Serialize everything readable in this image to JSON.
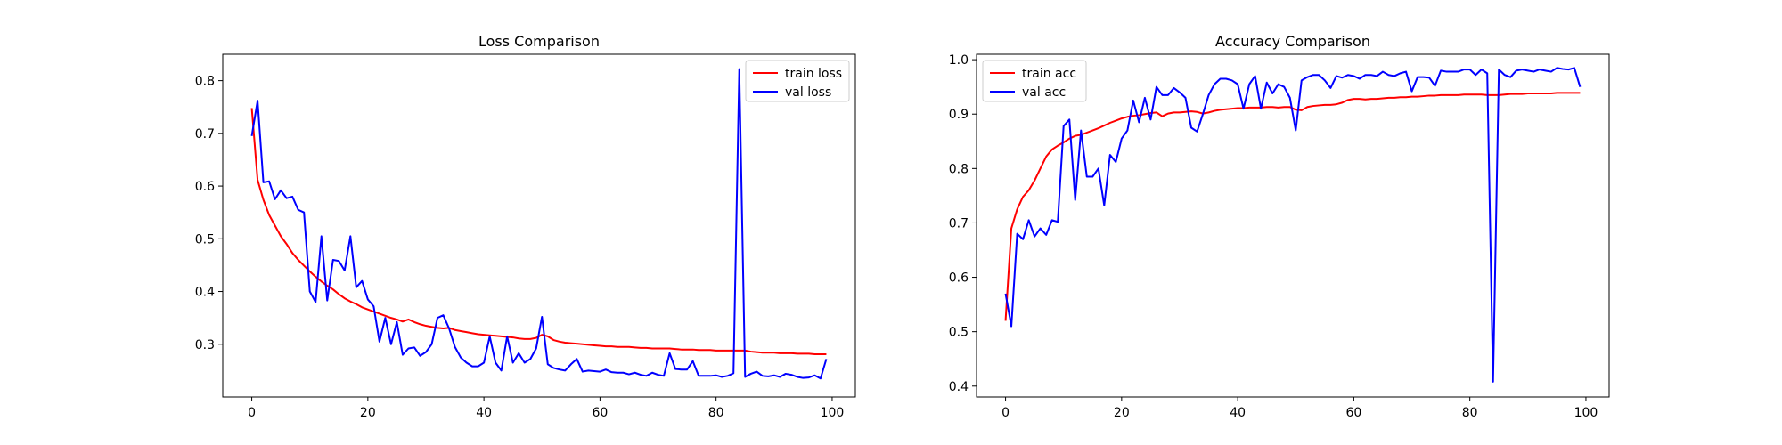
{
  "chart_data": [
    {
      "type": "line",
      "title": "Loss Comparison",
      "xlabel": "",
      "ylabel": "",
      "xlim": [
        -5,
        104
      ],
      "ylim": [
        0.2,
        0.85
      ],
      "xticks": [
        0,
        20,
        40,
        60,
        80,
        100
      ],
      "yticks": [
        0.3,
        0.4,
        0.5,
        0.6,
        0.7,
        0.8
      ],
      "grid": false,
      "legend": "top-right",
      "series": [
        {
          "name": "train loss",
          "color": "#ff0000",
          "x": [
            0,
            1,
            2,
            3,
            4,
            5,
            6,
            7,
            8,
            9,
            10,
            11,
            12,
            13,
            14,
            15,
            16,
            17,
            18,
            19,
            20,
            21,
            22,
            23,
            24,
            25,
            26,
            27,
            28,
            29,
            30,
            31,
            32,
            33,
            34,
            35,
            36,
            37,
            38,
            39,
            40,
            41,
            42,
            43,
            44,
            45,
            46,
            47,
            48,
            49,
            50,
            51,
            52,
            53,
            54,
            55,
            56,
            57,
            58,
            59,
            60,
            61,
            62,
            63,
            64,
            65,
            66,
            67,
            68,
            69,
            70,
            71,
            72,
            73,
            74,
            75,
            76,
            77,
            78,
            79,
            80,
            81,
            82,
            83,
            84,
            85,
            86,
            87,
            88,
            89,
            90,
            91,
            92,
            93,
            94,
            95,
            96,
            97,
            98,
            99
          ],
          "values": [
            0.748,
            0.612,
            0.574,
            0.545,
            0.525,
            0.505,
            0.49,
            0.473,
            0.46,
            0.449,
            0.438,
            0.428,
            0.419,
            0.411,
            0.404,
            0.395,
            0.387,
            0.381,
            0.376,
            0.37,
            0.366,
            0.362,
            0.358,
            0.354,
            0.35,
            0.347,
            0.343,
            0.347,
            0.342,
            0.338,
            0.335,
            0.333,
            0.331,
            0.33,
            0.331,
            0.327,
            0.325,
            0.323,
            0.321,
            0.319,
            0.318,
            0.317,
            0.316,
            0.315,
            0.314,
            0.313,
            0.311,
            0.31,
            0.31,
            0.312,
            0.318,
            0.315,
            0.308,
            0.305,
            0.303,
            0.302,
            0.301,
            0.3,
            0.299,
            0.298,
            0.297,
            0.296,
            0.296,
            0.295,
            0.295,
            0.295,
            0.294,
            0.293,
            0.293,
            0.292,
            0.292,
            0.292,
            0.292,
            0.291,
            0.29,
            0.29,
            0.29,
            0.289,
            0.289,
            0.289,
            0.288,
            0.288,
            0.288,
            0.288,
            0.288,
            0.288,
            0.286,
            0.285,
            0.284,
            0.284,
            0.284,
            0.283,
            0.283,
            0.283,
            0.282,
            0.282,
            0.282,
            0.281,
            0.281,
            0.281
          ]
        },
        {
          "name": "val loss",
          "color": "#0000ff",
          "x": [
            0,
            1,
            2,
            3,
            4,
            5,
            6,
            7,
            8,
            9,
            10,
            11,
            12,
            13,
            14,
            15,
            16,
            17,
            18,
            19,
            20,
            21,
            22,
            23,
            24,
            25,
            26,
            27,
            28,
            29,
            30,
            31,
            32,
            33,
            34,
            35,
            36,
            37,
            38,
            39,
            40,
            41,
            42,
            43,
            44,
            45,
            46,
            47,
            48,
            49,
            50,
            51,
            52,
            53,
            54,
            55,
            56,
            57,
            58,
            59,
            60,
            61,
            62,
            63,
            64,
            65,
            66,
            67,
            68,
            69,
            70,
            71,
            72,
            73,
            74,
            75,
            76,
            77,
            78,
            79,
            80,
            81,
            82,
            83,
            84,
            85,
            86,
            87,
            88,
            89,
            90,
            91,
            92,
            93,
            94,
            95,
            96,
            97,
            98,
            99
          ],
          "values": [
            0.695,
            0.762,
            0.607,
            0.609,
            0.575,
            0.592,
            0.577,
            0.58,
            0.555,
            0.55,
            0.4,
            0.38,
            0.505,
            0.383,
            0.46,
            0.458,
            0.44,
            0.505,
            0.408,
            0.42,
            0.385,
            0.372,
            0.305,
            0.35,
            0.3,
            0.342,
            0.28,
            0.292,
            0.294,
            0.278,
            0.285,
            0.3,
            0.35,
            0.355,
            0.33,
            0.295,
            0.275,
            0.265,
            0.258,
            0.258,
            0.265,
            0.315,
            0.265,
            0.25,
            0.315,
            0.265,
            0.283,
            0.265,
            0.272,
            0.292,
            0.352,
            0.262,
            0.255,
            0.252,
            0.25,
            0.262,
            0.272,
            0.248,
            0.25,
            0.249,
            0.248,
            0.252,
            0.247,
            0.246,
            0.246,
            0.243,
            0.246,
            0.242,
            0.24,
            0.246,
            0.242,
            0.24,
            0.283,
            0.253,
            0.252,
            0.252,
            0.268,
            0.24,
            0.24,
            0.24,
            0.241,
            0.238,
            0.24,
            0.245,
            0.822,
            0.238,
            0.244,
            0.248,
            0.24,
            0.239,
            0.241,
            0.238,
            0.244,
            0.242,
            0.238,
            0.236,
            0.237,
            0.241,
            0.235,
            0.272
          ]
        }
      ]
    },
    {
      "type": "line",
      "title": "Accuracy Comparison",
      "xlabel": "",
      "ylabel": "",
      "xlim": [
        -5,
        104
      ],
      "ylim": [
        0.38,
        1.01
      ],
      "xticks": [
        0,
        20,
        40,
        60,
        80,
        100
      ],
      "yticks": [
        0.4,
        0.5,
        0.6,
        0.7,
        0.8,
        0.9,
        1.0
      ],
      "grid": false,
      "legend": "top-left",
      "series": [
        {
          "name": "train acc",
          "color": "#ff0000",
          "x": [
            0,
            1,
            2,
            3,
            4,
            5,
            6,
            7,
            8,
            9,
            10,
            11,
            12,
            13,
            14,
            15,
            16,
            17,
            18,
            19,
            20,
            21,
            22,
            23,
            24,
            25,
            26,
            27,
            28,
            29,
            30,
            31,
            32,
            33,
            34,
            35,
            36,
            37,
            38,
            39,
            40,
            41,
            42,
            43,
            44,
            45,
            46,
            47,
            48,
            49,
            50,
            51,
            52,
            53,
            54,
            55,
            56,
            57,
            58,
            59,
            60,
            61,
            62,
            63,
            64,
            65,
            66,
            67,
            68,
            69,
            70,
            71,
            72,
            73,
            74,
            75,
            76,
            77,
            78,
            79,
            80,
            81,
            82,
            83,
            84,
            85,
            86,
            87,
            88,
            89,
            90,
            91,
            92,
            93,
            94,
            95,
            96,
            97,
            98,
            99
          ],
          "values": [
            0.52,
            0.69,
            0.725,
            0.748,
            0.76,
            0.778,
            0.8,
            0.822,
            0.835,
            0.842,
            0.848,
            0.855,
            0.86,
            0.862,
            0.866,
            0.87,
            0.874,
            0.879,
            0.884,
            0.888,
            0.892,
            0.895,
            0.897,
            0.898,
            0.9,
            0.902,
            0.903,
            0.896,
            0.901,
            0.903,
            0.903,
            0.904,
            0.905,
            0.904,
            0.901,
            0.903,
            0.906,
            0.908,
            0.909,
            0.91,
            0.911,
            0.911,
            0.912,
            0.912,
            0.912,
            0.913,
            0.913,
            0.912,
            0.913,
            0.913,
            0.908,
            0.907,
            0.913,
            0.915,
            0.916,
            0.917,
            0.917,
            0.918,
            0.921,
            0.926,
            0.928,
            0.928,
            0.927,
            0.928,
            0.928,
            0.929,
            0.93,
            0.93,
            0.931,
            0.931,
            0.932,
            0.932,
            0.933,
            0.934,
            0.934,
            0.935,
            0.935,
            0.935,
            0.935,
            0.936,
            0.936,
            0.936,
            0.936,
            0.935,
            0.935,
            0.935,
            0.936,
            0.937,
            0.937,
            0.937,
            0.938,
            0.938,
            0.938,
            0.938,
            0.938,
            0.939,
            0.939,
            0.939,
            0.939,
            0.939
          ]
        },
        {
          "name": "val acc",
          "color": "#0000ff",
          "x": [
            0,
            1,
            2,
            3,
            4,
            5,
            6,
            7,
            8,
            9,
            10,
            11,
            12,
            13,
            14,
            15,
            16,
            17,
            18,
            19,
            20,
            21,
            22,
            23,
            24,
            25,
            26,
            27,
            28,
            29,
            30,
            31,
            32,
            33,
            34,
            35,
            36,
            37,
            38,
            39,
            40,
            41,
            42,
            43,
            44,
            45,
            46,
            47,
            48,
            49,
            50,
            51,
            52,
            53,
            54,
            55,
            56,
            57,
            58,
            59,
            60,
            61,
            62,
            63,
            64,
            65,
            66,
            67,
            68,
            69,
            70,
            71,
            72,
            73,
            74,
            75,
            76,
            77,
            78,
            79,
            80,
            81,
            82,
            83,
            84,
            85,
            86,
            87,
            88,
            89,
            90,
            91,
            92,
            93,
            94,
            95,
            96,
            97,
            98,
            99
          ],
          "values": [
            0.57,
            0.51,
            0.68,
            0.67,
            0.705,
            0.675,
            0.69,
            0.678,
            0.705,
            0.702,
            0.878,
            0.89,
            0.742,
            0.87,
            0.785,
            0.785,
            0.8,
            0.732,
            0.825,
            0.812,
            0.855,
            0.87,
            0.925,
            0.885,
            0.93,
            0.89,
            0.95,
            0.935,
            0.935,
            0.948,
            0.94,
            0.93,
            0.875,
            0.868,
            0.9,
            0.935,
            0.955,
            0.965,
            0.965,
            0.962,
            0.955,
            0.91,
            0.955,
            0.97,
            0.91,
            0.958,
            0.938,
            0.955,
            0.95,
            0.93,
            0.87,
            0.962,
            0.968,
            0.972,
            0.972,
            0.962,
            0.948,
            0.97,
            0.967,
            0.972,
            0.97,
            0.965,
            0.972,
            0.972,
            0.97,
            0.978,
            0.972,
            0.97,
            0.975,
            0.978,
            0.942,
            0.968,
            0.968,
            0.967,
            0.952,
            0.98,
            0.978,
            0.978,
            0.978,
            0.982,
            0.982,
            0.972,
            0.982,
            0.975,
            0.408,
            0.982,
            0.972,
            0.968,
            0.98,
            0.982,
            0.98,
            0.978,
            0.982,
            0.98,
            0.978,
            0.985,
            0.983,
            0.982,
            0.985,
            0.95
          ]
        }
      ]
    }
  ]
}
